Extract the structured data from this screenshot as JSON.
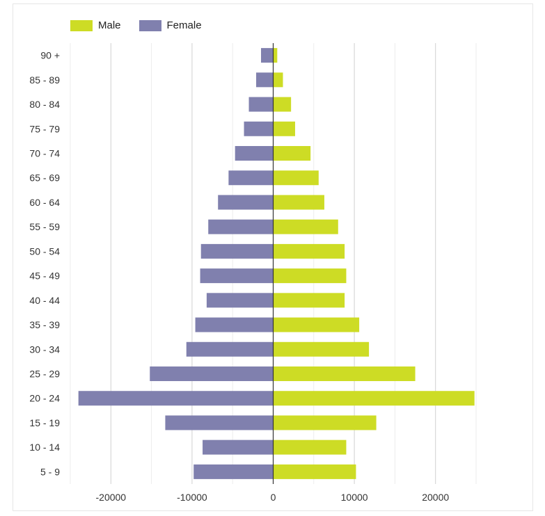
{
  "chart_data": {
    "type": "bar",
    "orientation": "horizontal",
    "categories": [
      "90 +",
      "85 - 89",
      "80 - 84",
      "75 - 79",
      "70 - 74",
      "65 - 69",
      "60 - 64",
      "55 - 59",
      "50 - 54",
      "45 - 49",
      "40 - 44",
      "35 - 39",
      "30 - 34",
      "25 - 29",
      "20 - 24",
      "15 - 19",
      "10 - 14",
      "5 - 9"
    ],
    "series": [
      {
        "name": "Male",
        "color": "#cddc25",
        "values": [
          500,
          1200,
          2200,
          2700,
          4600,
          5600,
          6300,
          8000,
          8800,
          9000,
          8800,
          10600,
          11800,
          17500,
          24800,
          12700,
          9000,
          10200
        ]
      },
      {
        "name": "Female",
        "color": "#8080ae",
        "values": [
          -1500,
          -2100,
          -3000,
          -3600,
          -4700,
          -5500,
          -6800,
          -8000,
          -8900,
          -9000,
          -8200,
          -9600,
          -10700,
          -15200,
          -24000,
          -13300,
          -8700,
          -9800
        ]
      }
    ],
    "x_ticks": [
      "-20000",
      "-10000",
      "0",
      "10000",
      "20000"
    ],
    "xlim": [
      -25000,
      25000
    ],
    "grid": true,
    "legend": "top-left",
    "title": "",
    "xlabel": "",
    "ylabel": ""
  }
}
